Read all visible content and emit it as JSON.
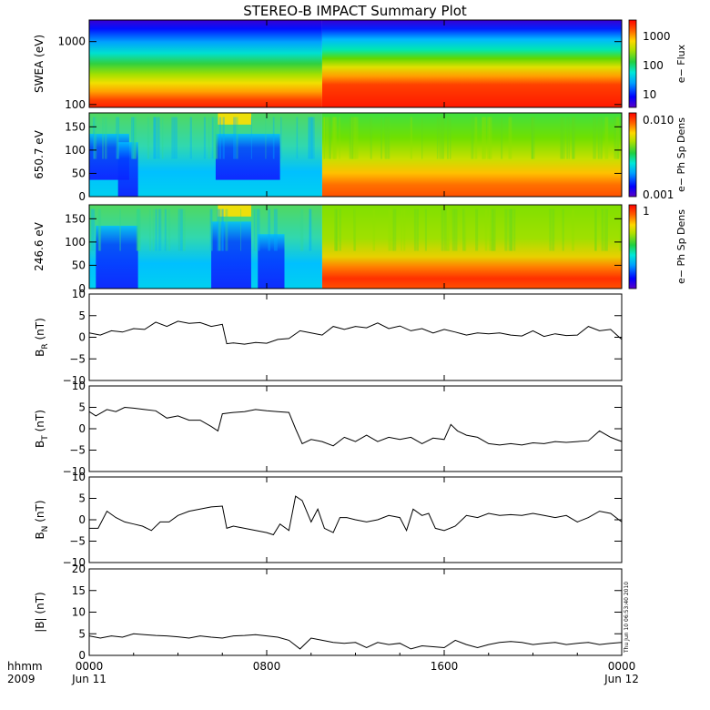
{
  "chart_data": {
    "title": "STEREO-B IMPACT Summary Plot",
    "type": "timeseries_stack",
    "x_axis": {
      "range_hours": [
        0,
        24
      ],
      "tick_hours": [
        0,
        8,
        16,
        24
      ],
      "tick_labels_top": [
        "0000",
        "0800",
        "1600",
        "0000"
      ],
      "tick_labels_bottom": [
        "Jun 11",
        "",
        "",
        "Jun 12"
      ],
      "label_top": "hhmm",
      "label_bottom": "2009"
    },
    "spectrograms": [
      {
        "name": "swea",
        "ylabel": "SWEA (eV)",
        "y_scale": "log",
        "y_ticks": [
          1000,
          100
        ],
        "y_tick_labels": [
          "1000",
          "100"
        ],
        "colorbar_label": "e− Flux",
        "colorbar_ticks": [
          "1000",
          "100",
          "10"
        ],
        "colorbar_scale": "log",
        "transition_hour": 10.5
      },
      {
        "name": "pad_650",
        "ylabel": "650.7 eV",
        "y_range": [
          0,
          180
        ],
        "y_ticks": [
          150,
          100,
          50,
          0
        ],
        "y_tick_labels": [
          "150",
          "100",
          "50",
          "0"
        ],
        "colorbar_label": "e− Ph Sp Dens",
        "colorbar_ticks": [
          "0.010",
          "0.001"
        ],
        "transition_hour": 10.5
      },
      {
        "name": "pad_246",
        "ylabel": "246.6 eV",
        "y_range": [
          0,
          180
        ],
        "y_ticks": [
          150,
          100,
          50,
          0
        ],
        "y_tick_labels": [
          "150",
          "100",
          "50",
          "0"
        ],
        "colorbar_label": "e− Ph Sp Dens",
        "colorbar_ticks": [
          "1"
        ],
        "transition_hour": 10.5
      }
    ],
    "series": [
      {
        "name": "BR",
        "ylabel_main": "B",
        "ylabel_sub": "R",
        "ylabel_unit": " (nT)",
        "ylim": [
          -10,
          10
        ],
        "y_ticks": [
          10,
          5,
          0,
          -5,
          -10
        ],
        "y_tick_labels": [
          "10",
          "5",
          "0",
          "−5",
          "−10"
        ],
        "x": [
          0,
          0.5,
          1,
          1.5,
          2,
          2.5,
          3,
          3.5,
          4,
          4.5,
          5,
          5.5,
          6,
          6.2,
          6.5,
          7,
          7.5,
          8,
          8.5,
          9,
          9.5,
          10,
          10.5,
          11,
          11.5,
          12,
          12.5,
          13,
          13.5,
          14,
          14.5,
          15,
          15.5,
          16,
          16.5,
          17,
          17.5,
          18,
          18.5,
          19,
          19.5,
          20,
          20.5,
          21,
          21.5,
          22,
          22.5,
          23,
          23.5,
          24
        ],
        "y": [
          1,
          0.5,
          1.5,
          1.2,
          2,
          1.8,
          3.5,
          2.5,
          3.7,
          3.2,
          3.4,
          2.5,
          3.0,
          -1.5,
          -1.3,
          -1.6,
          -1.2,
          -1.4,
          -0.5,
          -0.3,
          1.5,
          1.0,
          0.5,
          2.5,
          1.8,
          2.5,
          2.2,
          3.3,
          2.0,
          2.6,
          1.5,
          2.0,
          1.0,
          1.8,
          1.2,
          0.5,
          1.0,
          0.8,
          1.0,
          0.5,
          0.3,
          1.5,
          0.2,
          0.8,
          0.4,
          0.5,
          2.5,
          1.5,
          1.8,
          -0.5
        ]
      },
      {
        "name": "BT",
        "ylabel_main": "B",
        "ylabel_sub": "T",
        "ylabel_unit": " (nT)",
        "ylim": [
          -10,
          10
        ],
        "y_ticks": [
          10,
          5,
          0,
          -5,
          -10
        ],
        "y_tick_labels": [
          "10",
          "5",
          "0",
          "−5",
          "−10"
        ],
        "x": [
          0,
          0.3,
          0.8,
          1.2,
          1.6,
          2,
          2.5,
          3,
          3.5,
          4,
          4.5,
          5,
          5.5,
          5.8,
          6.0,
          6.5,
          7,
          7.5,
          8,
          8.5,
          9,
          9.3,
          9.6,
          10,
          10.5,
          11,
          11.5,
          12,
          12.5,
          13,
          13.5,
          14,
          14.5,
          15,
          15.5,
          16,
          16.3,
          16.6,
          17,
          17.5,
          18,
          18.5,
          19,
          19.5,
          20,
          20.5,
          21,
          21.5,
          22,
          22.5,
          23,
          23.5,
          24
        ],
        "y": [
          4,
          3.0,
          4.5,
          4.0,
          5.0,
          4.8,
          4.5,
          4.2,
          2.5,
          3.0,
          2.0,
          2.0,
          0.5,
          -0.5,
          3.5,
          3.8,
          4.0,
          4.5,
          4.2,
          4.0,
          3.8,
          0.0,
          -3.5,
          -2.5,
          -3.0,
          -4.0,
          -2.0,
          -3.0,
          -1.5,
          -3.0,
          -2.0,
          -2.5,
          -2.0,
          -3.5,
          -2.2,
          -2.5,
          1.0,
          -0.5,
          -1.5,
          -2.0,
          -3.5,
          -3.8,
          -3.5,
          -3.8,
          -3.3,
          -3.5,
          -3.0,
          -3.2,
          -3.0,
          -2.8,
          -0.5,
          -2.0,
          -3.0
        ]
      },
      {
        "name": "BN",
        "ylabel_main": "B",
        "ylabel_sub": "N",
        "ylabel_unit": " (nT)",
        "ylim": [
          -10,
          10
        ],
        "y_ticks": [
          10,
          5,
          0,
          -5,
          -10
        ],
        "y_tick_labels": [
          "10",
          "5",
          "0",
          "−5",
          "−10"
        ],
        "x": [
          0,
          0.4,
          0.8,
          1.2,
          1.6,
          2,
          2.4,
          2.8,
          3.2,
          3.6,
          4,
          4.5,
          5,
          5.5,
          6,
          6.2,
          6.5,
          7,
          7.5,
          8,
          8.3,
          8.6,
          9,
          9.3,
          9.6,
          10,
          10.3,
          10.6,
          11,
          11.3,
          11.6,
          12,
          12.5,
          13,
          13.5,
          14,
          14.3,
          14.6,
          15,
          15.3,
          15.6,
          16,
          16.5,
          17,
          17.5,
          18,
          18.5,
          19,
          19.5,
          20,
          20.5,
          21,
          21.5,
          22,
          22.5,
          23,
          23.5,
          24
        ],
        "y": [
          -2,
          -2.0,
          2.0,
          0.5,
          -0.5,
          -1.0,
          -1.5,
          -2.5,
          -0.5,
          -0.5,
          1.0,
          2.0,
          2.5,
          3.0,
          3.2,
          -2.0,
          -1.5,
          -2.0,
          -2.5,
          -3.0,
          -3.5,
          -1.0,
          -2.5,
          5.5,
          4.5,
          -0.5,
          2.5,
          -2.0,
          -3.0,
          0.5,
          0.5,
          0.0,
          -0.5,
          0.0,
          1.0,
          0.5,
          -2.5,
          2.5,
          1.0,
          1.5,
          -2.0,
          -2.5,
          -1.5,
          1.0,
          0.5,
          1.5,
          1.0,
          1.2,
          1.0,
          1.5,
          1.0,
          0.5,
          1.0,
          -0.5,
          0.5,
          2.0,
          1.5,
          -0.5
        ]
      },
      {
        "name": "Bmag",
        "ylabel_main": "|B| (nT)",
        "ylabel_sub": "",
        "ylabel_unit": "",
        "ylim": [
          0,
          20
        ],
        "y_ticks": [
          20,
          15,
          10,
          5,
          0
        ],
        "y_tick_labels": [
          "20",
          "15",
          "10",
          "5",
          "0"
        ],
        "x": [
          0,
          0.5,
          1,
          1.5,
          2,
          2.5,
          3,
          3.5,
          4,
          4.5,
          5,
          5.5,
          6,
          6.5,
          7,
          7.5,
          8,
          8.5,
          9,
          9.5,
          10,
          10.5,
          11,
          11.5,
          12,
          12.5,
          13,
          13.5,
          14,
          14.5,
          15,
          15.5,
          16,
          16.5,
          17,
          17.5,
          18,
          18.5,
          19,
          19.5,
          20,
          20.5,
          21,
          21.5,
          22,
          22.5,
          23,
          23.5,
          24
        ],
        "y": [
          4.5,
          4.0,
          4.5,
          4.2,
          5.0,
          4.8,
          4.6,
          4.5,
          4.3,
          4.0,
          4.5,
          4.2,
          4.0,
          4.5,
          4.6,
          4.8,
          4.5,
          4.2,
          3.5,
          1.5,
          4.0,
          3.5,
          3.0,
          2.8,
          3.0,
          1.8,
          3.0,
          2.5,
          2.8,
          1.5,
          2.2,
          2.0,
          1.8,
          3.5,
          2.5,
          1.8,
          2.5,
          3.0,
          3.2,
          3.0,
          2.5,
          2.8,
          3.0,
          2.5,
          2.8,
          3.0,
          2.5,
          2.8,
          3.0
        ]
      }
    ],
    "timestamp": "Thu Jun 10 06:53:40 2010"
  }
}
